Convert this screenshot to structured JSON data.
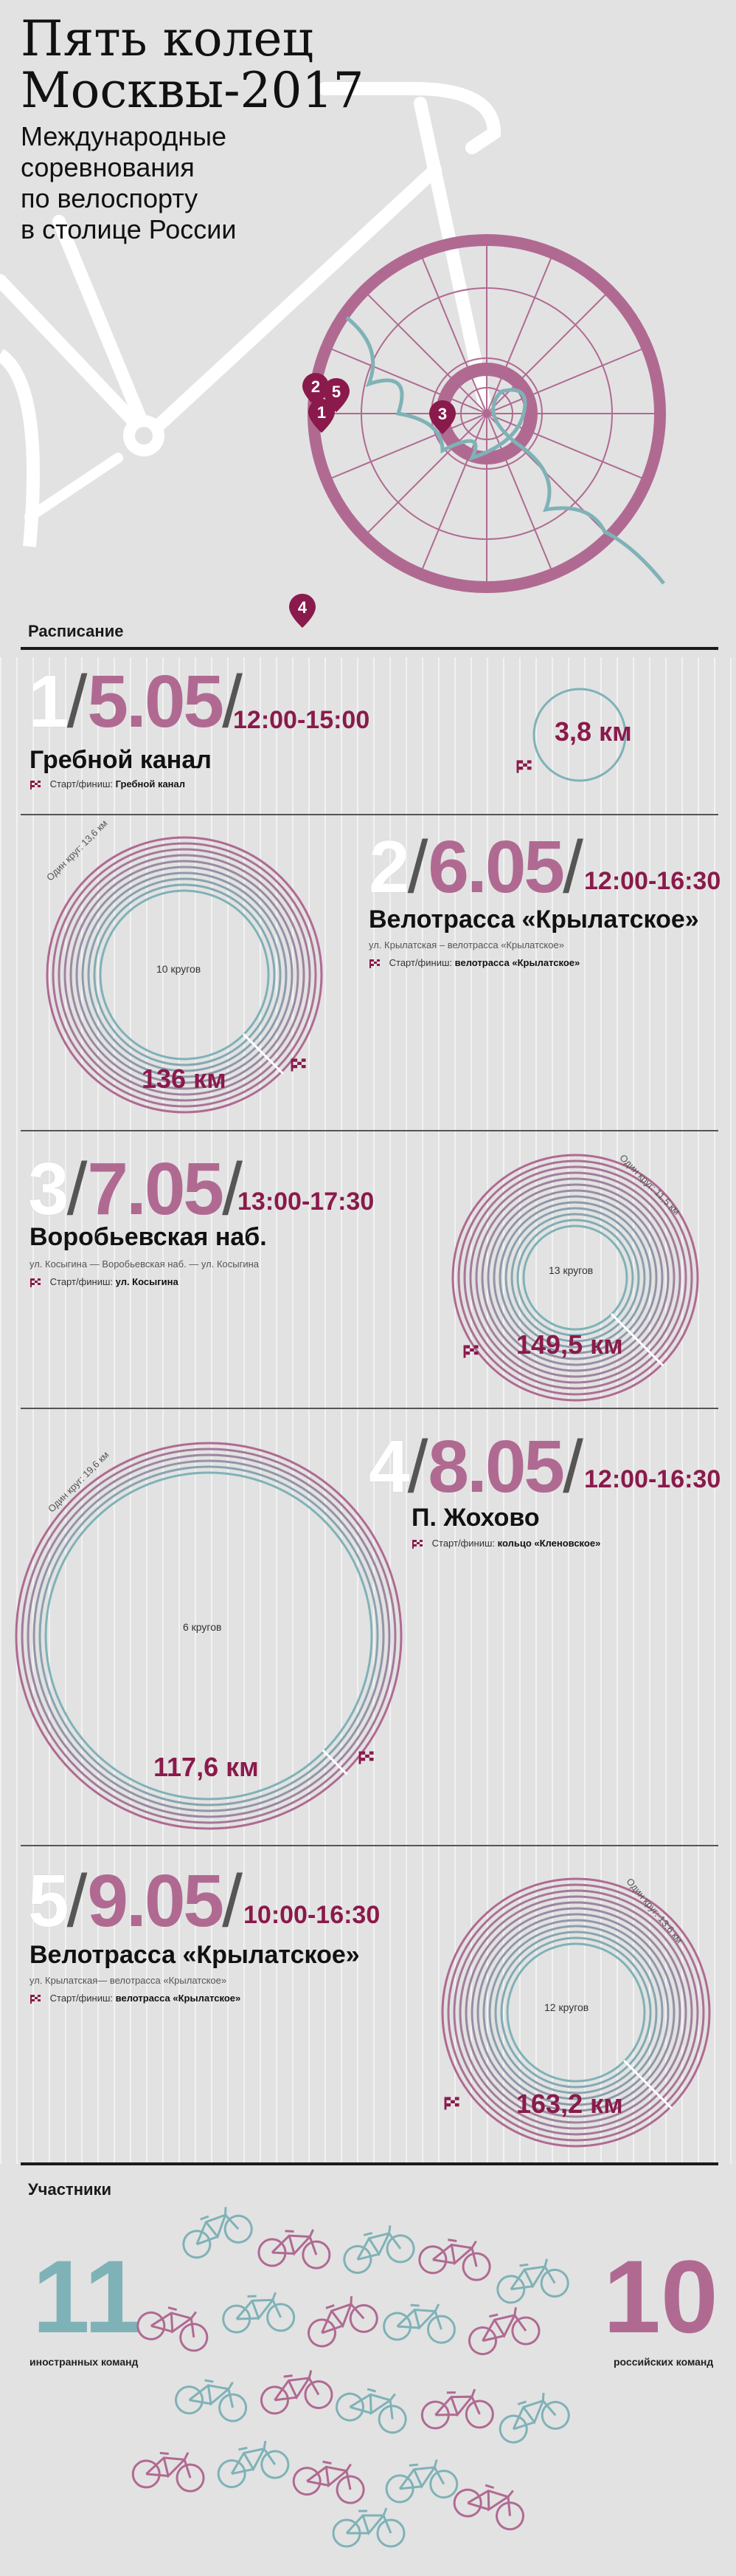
{
  "header": {
    "title_line1": "Пять колец",
    "title_line2": "Москвы-2017",
    "subtitle": [
      "Международные",
      "соревнования",
      "по велоспорту",
      "в столице России"
    ]
  },
  "map_markers": [
    "1",
    "2",
    "5",
    "3",
    "4"
  ],
  "schedule": {
    "label": "Расписание",
    "stages": [
      {
        "num": "1",
        "date": "5.05",
        "time": "12:00-15:00",
        "venue": "Гребной канал",
        "route": "",
        "start_label": "Старт/финиш:",
        "start_place": "Гребной канал",
        "km": "3,8 км",
        "laps": "",
        "one_lap": ""
      },
      {
        "num": "2",
        "date": "6.05",
        "time": "12:00-16:30",
        "venue": "Велотрасса «Крылатское»",
        "route": "ул. Крылатская – велотрасса «Крылатское»",
        "start_label": "Старт/финиш:",
        "start_place": "велотрасса «Крылатское»",
        "km": "136 км",
        "laps": "10 кругов",
        "one_lap": "Один круг: 13,6 км"
      },
      {
        "num": "3",
        "date": "7.05",
        "time": "13:00-17:30",
        "venue": "Воробьевская наб.",
        "route": "ул. Косыгина — Воробьевская наб. — ул. Косыгина",
        "start_label": "Старт/финиш:",
        "start_place": "ул. Косыгина",
        "km": "149,5 км",
        "laps": "13 кругов",
        "one_lap": "Один круг: 11,5 км"
      },
      {
        "num": "4",
        "date": "8.05",
        "time": "12:00-16:30",
        "venue": "П. Жохово",
        "route": "",
        "start_label": "Старт/финиш:",
        "start_place": "кольцо «Кленовское»",
        "km": "117,6 км",
        "laps": "6 кругов",
        "one_lap": "Один круг: 19,6 км"
      },
      {
        "num": "5",
        "date": "9.05",
        "time": "10:00-16:30",
        "venue": "Велотрасса «Крылатское»",
        "route": "ул. Крылатская— велотрасса «Крылатское»",
        "start_label": "Старт/финиш:",
        "start_place": "велотрасса «Крылатское»",
        "km": "163,2 км",
        "laps": "12 кругов",
        "one_lap": "Один круг: 13,6 км"
      }
    ]
  },
  "participants": {
    "label": "Участники",
    "foreign_count": "11",
    "foreign_label": "иностранных команд",
    "russian_count": "10",
    "russian_label": "российских команд"
  },
  "colors": {
    "pink": "#b06a92",
    "teal": "#7fb2b7",
    "dark_red": "#8a1a4b",
    "background": "#e2e2e2"
  },
  "icons": [
    "checkered-flag-icon",
    "map-marker-icon",
    "bicycle-icon"
  ]
}
